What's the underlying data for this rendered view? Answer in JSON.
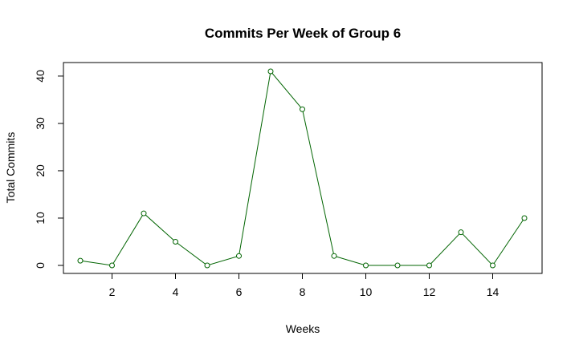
{
  "chart_data": {
    "type": "line",
    "title": "Commits Per Week of Group 6",
    "xlabel": "Weeks",
    "ylabel": "Total Commits",
    "x": [
      1,
      2,
      3,
      4,
      5,
      6,
      7,
      8,
      9,
      10,
      11,
      12,
      13,
      14,
      15
    ],
    "series": [
      {
        "values": [
          1,
          0,
          11,
          5,
          0,
          2,
          41,
          33,
          2,
          0,
          0,
          0,
          7,
          0,
          10
        ],
        "color": "#006400",
        "marker": "open-circle"
      }
    ],
    "xlim": [
      1,
      15
    ],
    "ylim": [
      0,
      41
    ],
    "xticks": [
      2,
      4,
      6,
      8,
      10,
      12,
      14
    ],
    "yticks": [
      0,
      10,
      20,
      30,
      40
    ],
    "grid": false,
    "legend": "none"
  }
}
